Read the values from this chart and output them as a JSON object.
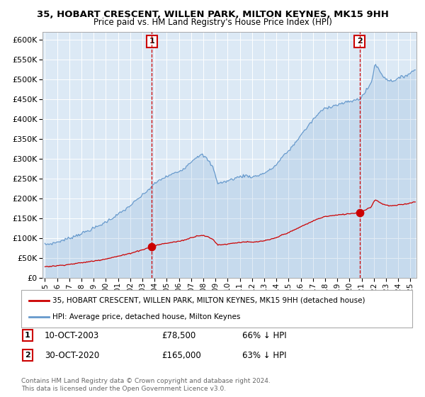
{
  "title": "35, HOBART CRESCENT, WILLEN PARK, MILTON KEYNES, MK15 9HH",
  "subtitle": "Price paid vs. HM Land Registry's House Price Index (HPI)",
  "background_color": "#ffffff",
  "plot_bg_color": "#dce9f5",
  "hpi_color": "#6699cc",
  "price_color": "#cc0000",
  "marker_color": "#cc0000",
  "vline_color": "#cc0000",
  "sale1": {
    "date_num": 2003.78,
    "price": 78500,
    "label": "1"
  },
  "sale2": {
    "date_num": 2020.83,
    "price": 165000,
    "label": "2"
  },
  "ylim": [
    0,
    620000
  ],
  "xlim": [
    1994.8,
    2025.5
  ],
  "ylabel_ticks": [
    0,
    50000,
    100000,
    150000,
    200000,
    250000,
    300000,
    350000,
    400000,
    450000,
    500000,
    550000,
    600000
  ],
  "xlabel_ticks": [
    1995,
    1996,
    1997,
    1998,
    1999,
    2000,
    2001,
    2002,
    2003,
    2004,
    2005,
    2006,
    2007,
    2008,
    2009,
    2010,
    2011,
    2012,
    2013,
    2014,
    2015,
    2016,
    2017,
    2018,
    2019,
    2020,
    2021,
    2022,
    2023,
    2024,
    2025
  ],
  "legend_line1": "35, HOBART CRESCENT, WILLEN PARK, MILTON KEYNES, MK15 9HH (detached house)",
  "legend_line2": "HPI: Average price, detached house, Milton Keynes",
  "note1_label": "1",
  "note1_date": "10-OCT-2003",
  "note1_price": "£78,500",
  "note1_hpi": "66% ↓ HPI",
  "note2_label": "2",
  "note2_date": "30-OCT-2020",
  "note2_price": "£165,000",
  "note2_hpi": "63% ↓ HPI",
  "footer": "Contains HM Land Registry data © Crown copyright and database right 2024.\nThis data is licensed under the Open Government Licence v3.0."
}
